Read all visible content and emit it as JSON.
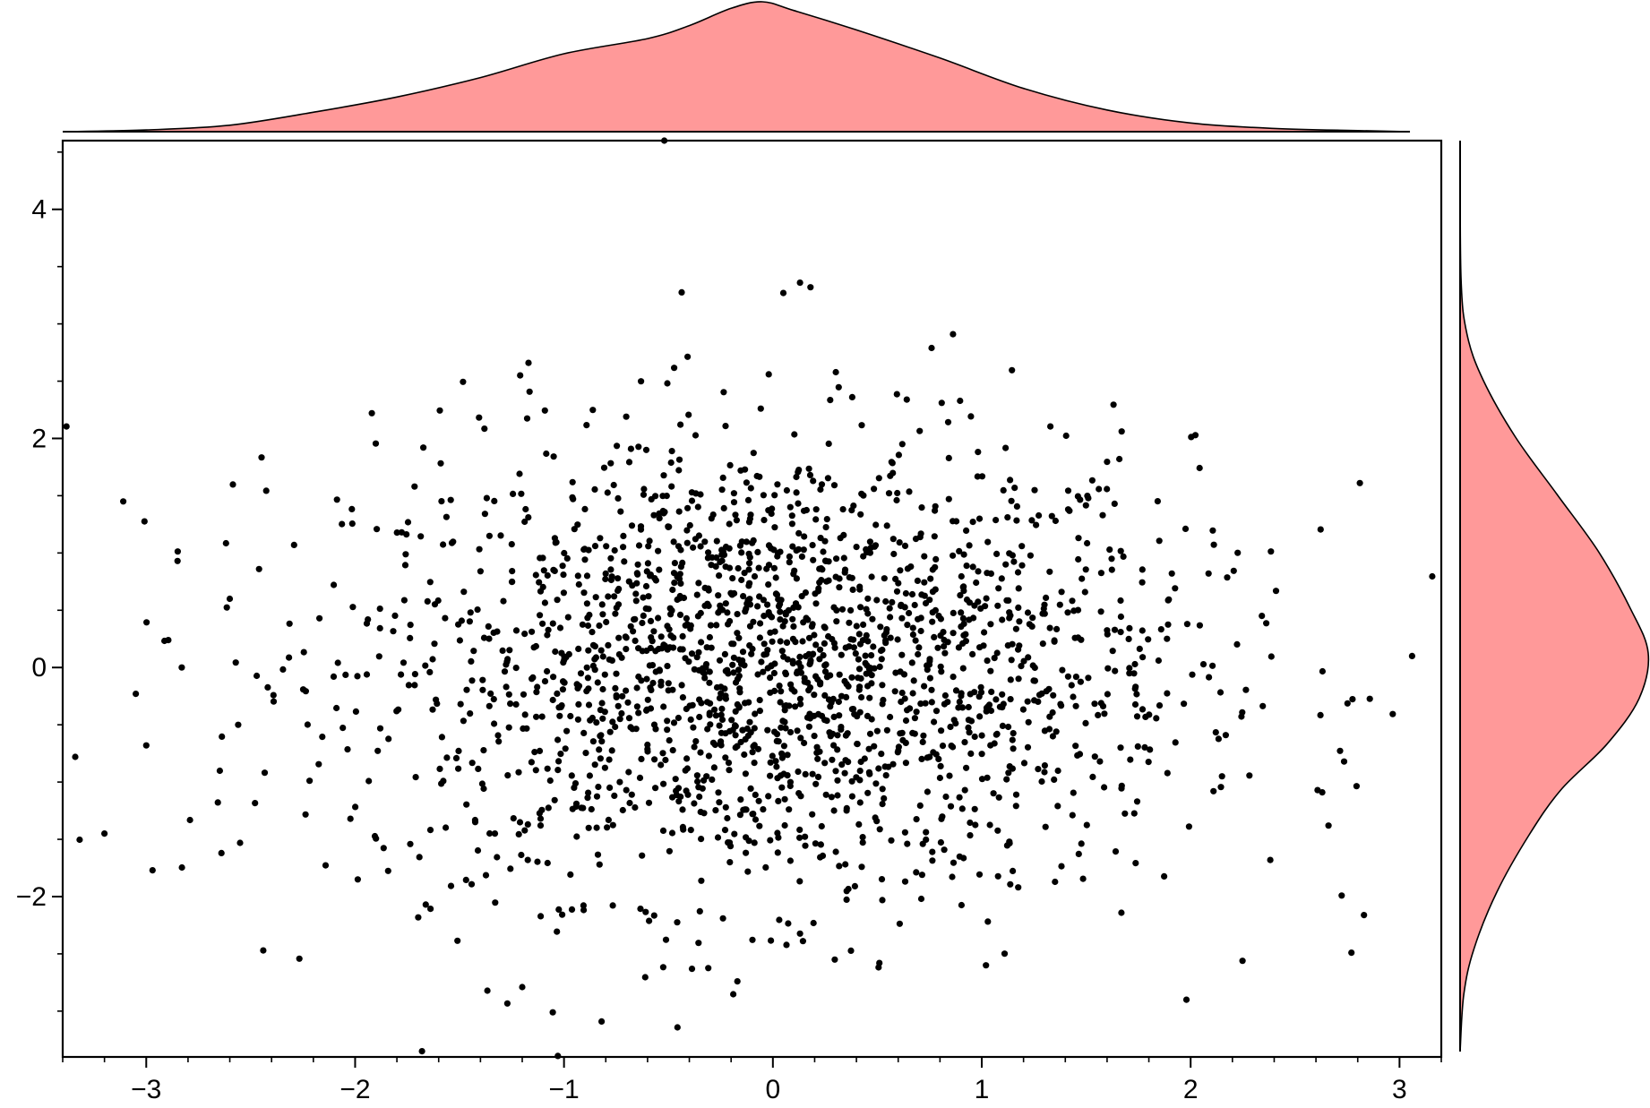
{
  "chart_data": [
    {
      "panel": "main",
      "type": "scatter",
      "title": "",
      "xlabel": "",
      "ylabel": "",
      "xlim": [
        -3.4,
        3.2
      ],
      "ylim": [
        -3.4,
        4.6
      ],
      "x_ticks": [
        -3,
        -2,
        -1,
        0,
        1,
        2,
        3
      ],
      "x_tick_labels": [
        "−3",
        "−2",
        "−1",
        "0",
        "1",
        "2",
        "3"
      ],
      "y_ticks": [
        -2,
        0,
        2,
        4
      ],
      "y_tick_labels": [
        "−2",
        "0",
        "2",
        "4"
      ],
      "x_minor_step": 0.2,
      "y_minor_step": 0.5,
      "grid": false,
      "marker_color": "#000000",
      "n_points_approx": 2000,
      "outliers": [
        [
          -0.52,
          4.6
        ],
        [
          0.05,
          3.27
        ],
        [
          0.13,
          3.36
        ],
        [
          0.18,
          3.32
        ],
        [
          0.76,
          2.79
        ],
        [
          -1.21,
          2.55
        ],
        [
          -1.17,
          2.66
        ],
        [
          -0.02,
          2.56
        ],
        [
          0.38,
          2.36
        ],
        [
          -1.92,
          2.22
        ],
        [
          2.81,
          1.61
        ],
        [
          -3.11,
          1.45
        ],
        [
          -2.85,
          0.93
        ],
        [
          3.06,
          0.1
        ],
        [
          -3.34,
          -0.78
        ],
        [
          -3.2,
          -1.45
        ],
        [
          -2.97,
          -1.77
        ],
        [
          -2.64,
          -1.62
        ],
        [
          -2.44,
          -2.47
        ],
        [
          -1.68,
          -3.35
        ],
        [
          -0.82,
          -3.09
        ],
        [
          -1.2,
          -2.79
        ],
        [
          2.77,
          -2.49
        ],
        [
          1.98,
          -2.9
        ],
        [
          -2.83,
          0.0
        ],
        [
          -2.56,
          -0.5
        ],
        [
          -2.46,
          0.86
        ],
        [
          -2.6,
          0.6
        ],
        [
          -3.05,
          -0.23
        ],
        [
          -3.0,
          -0.68
        ],
        [
          2.66,
          -1.38
        ],
        [
          2.63,
          -1.09
        ],
        [
          -0.17,
          -2.74
        ],
        [
          0.51,
          -2.58
        ],
        [
          1.02,
          -2.6
        ]
      ],
      "cluster": {
        "x_mean": 0.0,
        "x_sd": 1.0,
        "y_mean": 0.0,
        "y_sd": 1.0
      }
    },
    {
      "panel": "top-marginal",
      "type": "area",
      "description": "kernel density of x",
      "fill_color": "#ff9999",
      "x": [
        -3.4,
        -3.0,
        -2.6,
        -2.2,
        -1.8,
        -1.4,
        -1.0,
        -0.6,
        -0.4,
        -0.2,
        -0.05,
        0.1,
        0.4,
        0.8,
        1.2,
        1.6,
        2.0,
        2.4,
        2.8,
        3.05
      ],
      "density": [
        0.0,
        0.008,
        0.03,
        0.09,
        0.16,
        0.25,
        0.36,
        0.43,
        0.49,
        0.57,
        0.6,
        0.56,
        0.47,
        0.34,
        0.2,
        0.1,
        0.04,
        0.015,
        0.005,
        0.0
      ]
    },
    {
      "panel": "right-marginal",
      "type": "area",
      "description": "kernel density of y",
      "fill_color": "#ff9999",
      "y": [
        4.6,
        3.4,
        2.9,
        2.5,
        2.0,
        1.5,
        1.0,
        0.5,
        0.1,
        -0.3,
        -0.7,
        -1.1,
        -1.5,
        -2.0,
        -2.5,
        -2.9,
        -3.4
      ],
      "density": [
        0.0,
        0.002,
        0.015,
        0.05,
        0.12,
        0.21,
        0.3,
        0.37,
        0.41,
        0.39,
        0.32,
        0.22,
        0.15,
        0.08,
        0.03,
        0.008,
        0.0
      ]
    }
  ]
}
